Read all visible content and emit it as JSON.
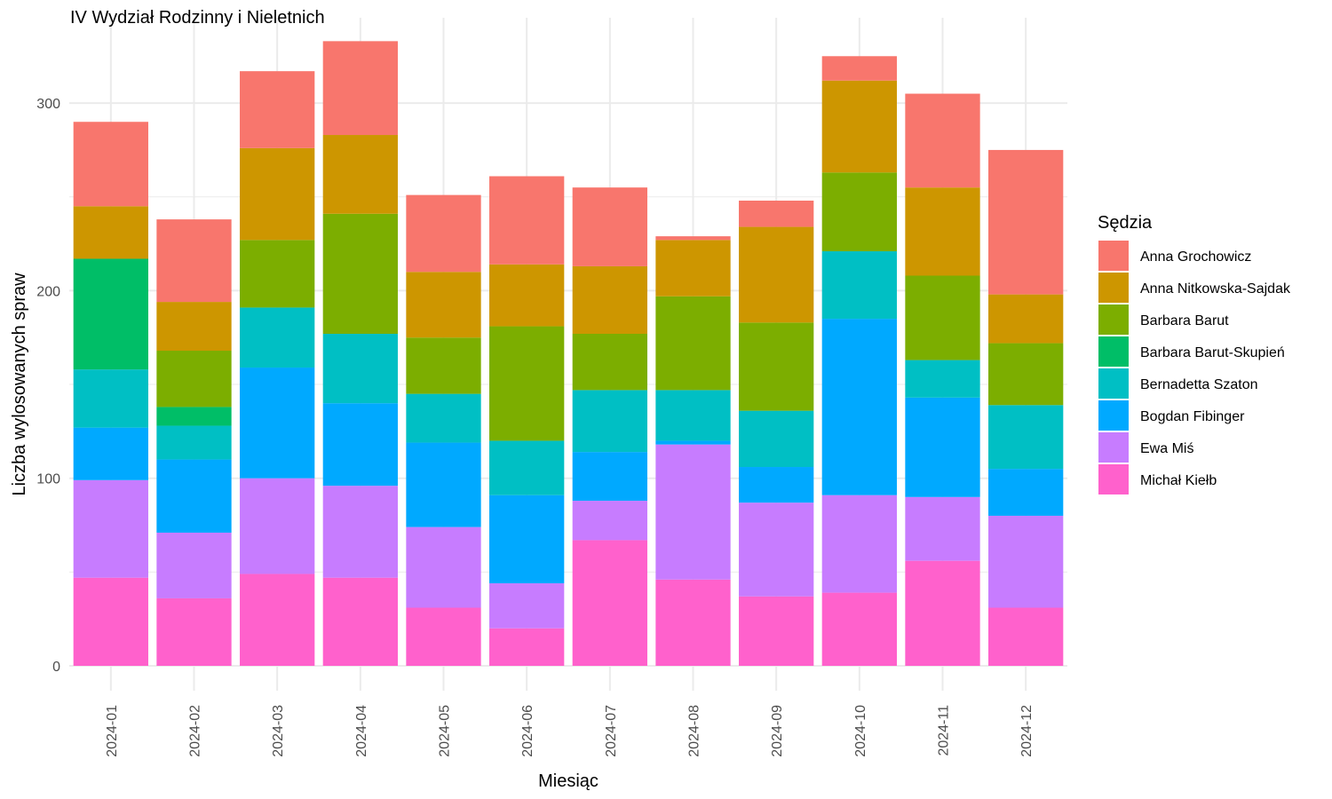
{
  "chart_data": {
    "type": "bar",
    "stacked": true,
    "title": "IV Wydział Rodzinny i Nieletnich",
    "xlabel": "Miesiąc",
    "ylabel": "Liczba wylosowanych spraw",
    "ylim": [
      0,
      340
    ],
    "yticks": [
      0,
      100,
      200,
      300
    ],
    "grid": true,
    "legend_title": "Sędzia",
    "legend_position": "right",
    "categories": [
      "2024-01",
      "2024-02",
      "2024-03",
      "2024-04",
      "2024-05",
      "2024-06",
      "2024-07",
      "2024-08",
      "2024-09",
      "2024-10",
      "2024-11",
      "2024-12"
    ],
    "series": [
      {
        "name": "Anna Grochowicz",
        "color": "#F8766D",
        "values": [
          45,
          44,
          41,
          50,
          41,
          47,
          42,
          2,
          14,
          13,
          50,
          77
        ]
      },
      {
        "name": "Anna Nitkowska-Sajdak",
        "color": "#CD9600",
        "values": [
          28,
          26,
          49,
          42,
          35,
          33,
          36,
          30,
          51,
          49,
          47,
          26
        ]
      },
      {
        "name": "Barbara Barut",
        "color": "#7CAE00",
        "values": [
          0,
          30,
          36,
          64,
          30,
          61,
          30,
          50,
          47,
          42,
          45,
          33
        ]
      },
      {
        "name": "Barbara Barut-Skupień",
        "color": "#00BE67",
        "values": [
          59,
          10,
          0,
          0,
          0,
          0,
          0,
          0,
          0,
          0,
          0,
          0
        ]
      },
      {
        "name": "Bernadetta Szaton",
        "color": "#00BFC4",
        "values": [
          31,
          18,
          32,
          37,
          26,
          29,
          33,
          27,
          30,
          36,
          20,
          34
        ]
      },
      {
        "name": "Bogdan Fibinger",
        "color": "#00A9FF",
        "values": [
          28,
          39,
          59,
          44,
          45,
          47,
          26,
          2,
          19,
          94,
          53,
          25
        ]
      },
      {
        "name": "Ewa Miś",
        "color": "#C77CFF",
        "values": [
          52,
          35,
          51,
          49,
          43,
          24,
          21,
          72,
          50,
          52,
          34,
          49
        ]
      },
      {
        "name": "Michał Kiełb",
        "color": "#FF61CC",
        "values": [
          47,
          36,
          49,
          47,
          31,
          20,
          67,
          46,
          37,
          39,
          56,
          31
        ]
      }
    ]
  }
}
